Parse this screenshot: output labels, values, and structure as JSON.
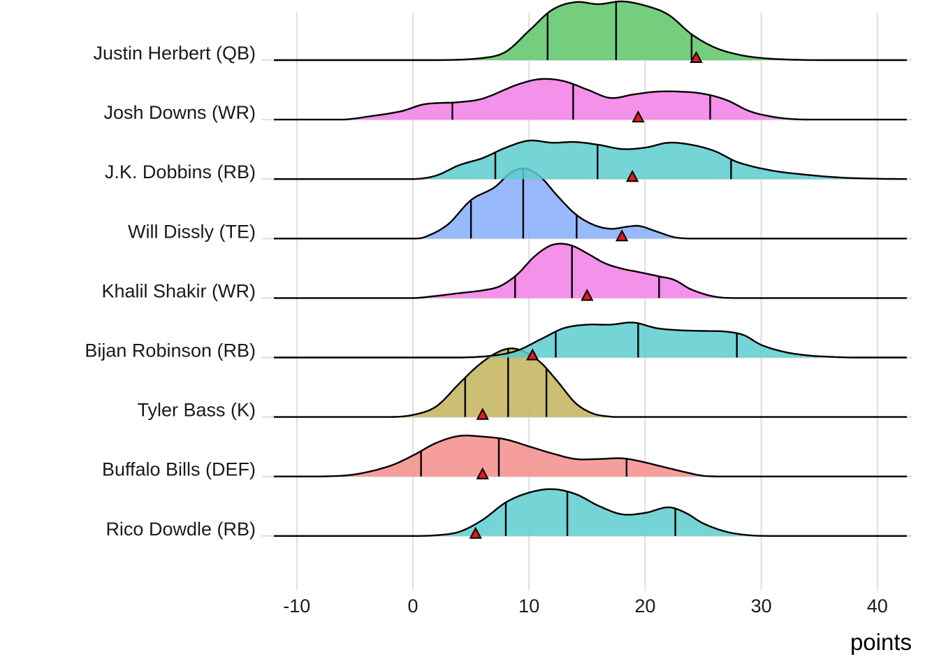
{
  "chart_data": {
    "type": "ridgeline",
    "title": "",
    "xlabel": "points",
    "ylabel": "",
    "xlim": [
      -12,
      42.5
    ],
    "x_ticks": [
      -10,
      0,
      10,
      20,
      30,
      40
    ],
    "x_tick_labels": [
      "-10",
      "0",
      "10",
      "20",
      "30",
      "40"
    ],
    "grid": true,
    "legend": "none",
    "marker_color": "#e41a1c",
    "players": [
      {
        "name": "Justin Herbert (QB)",
        "color": "#5cc566",
        "quantiles": [
          11.6,
          17.5,
          24.0
        ],
        "marker": 24.4,
        "density": [
          [
            -12,
            0
          ],
          [
            2,
            0
          ],
          [
            6,
            0.03
          ],
          [
            8,
            0.12
          ],
          [
            10,
            0.42
          ],
          [
            12,
            0.72
          ],
          [
            14,
            0.83
          ],
          [
            16,
            0.8
          ],
          [
            18,
            0.84
          ],
          [
            20,
            0.78
          ],
          [
            22,
            0.65
          ],
          [
            24,
            0.37
          ],
          [
            26,
            0.18
          ],
          [
            28,
            0.08
          ],
          [
            30,
            0.03
          ],
          [
            33,
            0.005
          ],
          [
            36,
            0
          ],
          [
            42.5,
            0
          ]
        ]
      },
      {
        "name": "Josh Downs (WR)",
        "color": "#f27ee6",
        "quantiles": [
          3.4,
          13.8,
          25.6
        ],
        "marker": 19.4,
        "density": [
          [
            -12,
            0
          ],
          [
            -6,
            0
          ],
          [
            -4,
            0.04
          ],
          [
            -1,
            0.12
          ],
          [
            1,
            0.22
          ],
          [
            4,
            0.25
          ],
          [
            6,
            0.3
          ],
          [
            9,
            0.5
          ],
          [
            11,
            0.58
          ],
          [
            13,
            0.55
          ],
          [
            15,
            0.43
          ],
          [
            17,
            0.31
          ],
          [
            19,
            0.36
          ],
          [
            21,
            0.4
          ],
          [
            23,
            0.4
          ],
          [
            25,
            0.37
          ],
          [
            27,
            0.28
          ],
          [
            29,
            0.12
          ],
          [
            31,
            0.04
          ],
          [
            33,
            0.005
          ],
          [
            36,
            0
          ],
          [
            42.5,
            0
          ]
        ]
      },
      {
        "name": "J.K. Dobbins (RB)",
        "color": "#5ccdcf",
        "quantiles": [
          7.1,
          15.9,
          27.4
        ],
        "marker": 18.9,
        "density": [
          [
            -12,
            0
          ],
          [
            0,
            0
          ],
          [
            2,
            0.05
          ],
          [
            4,
            0.2
          ],
          [
            6,
            0.3
          ],
          [
            8,
            0.45
          ],
          [
            10,
            0.55
          ],
          [
            12,
            0.52
          ],
          [
            14,
            0.53
          ],
          [
            16,
            0.49
          ],
          [
            18,
            0.43
          ],
          [
            20,
            0.45
          ],
          [
            22,
            0.52
          ],
          [
            24,
            0.49
          ],
          [
            26,
            0.4
          ],
          [
            28,
            0.24
          ],
          [
            31,
            0.12
          ],
          [
            34,
            0.06
          ],
          [
            37,
            0.02
          ],
          [
            40,
            0.005
          ],
          [
            42.5,
            0
          ]
        ]
      },
      {
        "name": "Will Dissly (TE)",
        "color": "#86aefb",
        "quantiles": [
          5.0,
          9.5,
          14.1
        ],
        "marker": 18.0,
        "density": [
          [
            -12,
            0
          ],
          [
            0,
            0
          ],
          [
            1,
            0.02
          ],
          [
            3,
            0.2
          ],
          [
            5,
            0.55
          ],
          [
            7,
            0.73
          ],
          [
            8.5,
            0.95
          ],
          [
            9.7,
            1.0
          ],
          [
            11,
            0.88
          ],
          [
            12.5,
            0.6
          ],
          [
            14,
            0.35
          ],
          [
            15.5,
            0.2
          ],
          [
            17,
            0.14
          ],
          [
            18.5,
            0.17
          ],
          [
            19.5,
            0.18
          ],
          [
            21,
            0.1
          ],
          [
            22.5,
            0.02
          ],
          [
            24,
            0
          ],
          [
            42.5,
            0
          ]
        ]
      },
      {
        "name": "Khalil Shakir (WR)",
        "color": "#f27ee6",
        "quantiles": [
          8.8,
          13.7,
          21.2
        ],
        "marker": 15.0,
        "density": [
          [
            -12,
            0
          ],
          [
            0,
            0
          ],
          [
            2,
            0.03
          ],
          [
            4,
            0.07
          ],
          [
            6,
            0.11
          ],
          [
            7.5,
            0.17
          ],
          [
            9,
            0.34
          ],
          [
            10.5,
            0.6
          ],
          [
            12,
            0.76
          ],
          [
            13.5,
            0.76
          ],
          [
            15,
            0.64
          ],
          [
            16.5,
            0.5
          ],
          [
            18,
            0.42
          ],
          [
            19.5,
            0.37
          ],
          [
            21.2,
            0.31
          ],
          [
            22.5,
            0.26
          ],
          [
            24,
            0.12
          ],
          [
            26,
            0.02
          ],
          [
            28,
            0
          ],
          [
            42.5,
            0
          ]
        ]
      },
      {
        "name": "Bijan Robinson (RB)",
        "color": "#5ccdcf",
        "quantiles": [
          12.3,
          19.4,
          27.9
        ],
        "marker": 10.3,
        "density": [
          [
            -12,
            0
          ],
          [
            4,
            0
          ],
          [
            7,
            0.03
          ],
          [
            9,
            0.1
          ],
          [
            11,
            0.26
          ],
          [
            13,
            0.42
          ],
          [
            15,
            0.47
          ],
          [
            17,
            0.47
          ],
          [
            19,
            0.5
          ],
          [
            21,
            0.42
          ],
          [
            23,
            0.39
          ],
          [
            25,
            0.38
          ],
          [
            27,
            0.37
          ],
          [
            28.5,
            0.32
          ],
          [
            30,
            0.18
          ],
          [
            32,
            0.08
          ],
          [
            34,
            0.03
          ],
          [
            36,
            0.01
          ],
          [
            38,
            0
          ],
          [
            42.5,
            0
          ]
        ]
      },
      {
        "name": "Tyler Bass (K)",
        "color": "#c3b35a",
        "quantiles": [
          4.5,
          8.2,
          11.5
        ],
        "marker": 6.0,
        "density": [
          [
            -12,
            0
          ],
          [
            -2,
            0
          ],
          [
            0,
            0.03
          ],
          [
            2,
            0.15
          ],
          [
            4,
            0.48
          ],
          [
            5.5,
            0.72
          ],
          [
            7,
            0.9
          ],
          [
            8.3,
            0.98
          ],
          [
            9.5,
            0.94
          ],
          [
            11,
            0.78
          ],
          [
            12.5,
            0.5
          ],
          [
            14,
            0.2
          ],
          [
            15.5,
            0.05
          ],
          [
            17,
            0.005
          ],
          [
            18,
            0
          ],
          [
            42.5,
            0
          ]
        ]
      },
      {
        "name": "Buffalo Bills (DEF)",
        "color": "#f48d8a",
        "quantiles": [
          0.7,
          7.4,
          18.4
        ],
        "marker": 6.0,
        "density": [
          [
            -12,
            0
          ],
          [
            -8,
            0
          ],
          [
            -5,
            0.03
          ],
          [
            -2,
            0.15
          ],
          [
            0,
            0.3
          ],
          [
            2,
            0.48
          ],
          [
            4,
            0.58
          ],
          [
            6,
            0.57
          ],
          [
            8,
            0.53
          ],
          [
            10,
            0.43
          ],
          [
            12,
            0.33
          ],
          [
            14,
            0.25
          ],
          [
            16,
            0.25
          ],
          [
            18,
            0.26
          ],
          [
            19.5,
            0.22
          ],
          [
            21.5,
            0.14
          ],
          [
            23.5,
            0.06
          ],
          [
            25,
            0.01
          ],
          [
            27,
            0
          ],
          [
            42.5,
            0
          ]
        ]
      },
      {
        "name": "Rico Dowdle (RB)",
        "color": "#5ccdcf",
        "quantiles": [
          8.0,
          13.3,
          22.6
        ],
        "marker": 5.4,
        "density": [
          [
            -12,
            0
          ],
          [
            0,
            0
          ],
          [
            2,
            0.01
          ],
          [
            4,
            0.06
          ],
          [
            6,
            0.23
          ],
          [
            8,
            0.48
          ],
          [
            10,
            0.62
          ],
          [
            12,
            0.67
          ],
          [
            14,
            0.6
          ],
          [
            16,
            0.43
          ],
          [
            18,
            0.31
          ],
          [
            20,
            0.33
          ],
          [
            22,
            0.41
          ],
          [
            23.5,
            0.33
          ],
          [
            25,
            0.18
          ],
          [
            27,
            0.06
          ],
          [
            29,
            0.01
          ],
          [
            31,
            0
          ],
          [
            42.5,
            0
          ]
        ]
      }
    ]
  }
}
